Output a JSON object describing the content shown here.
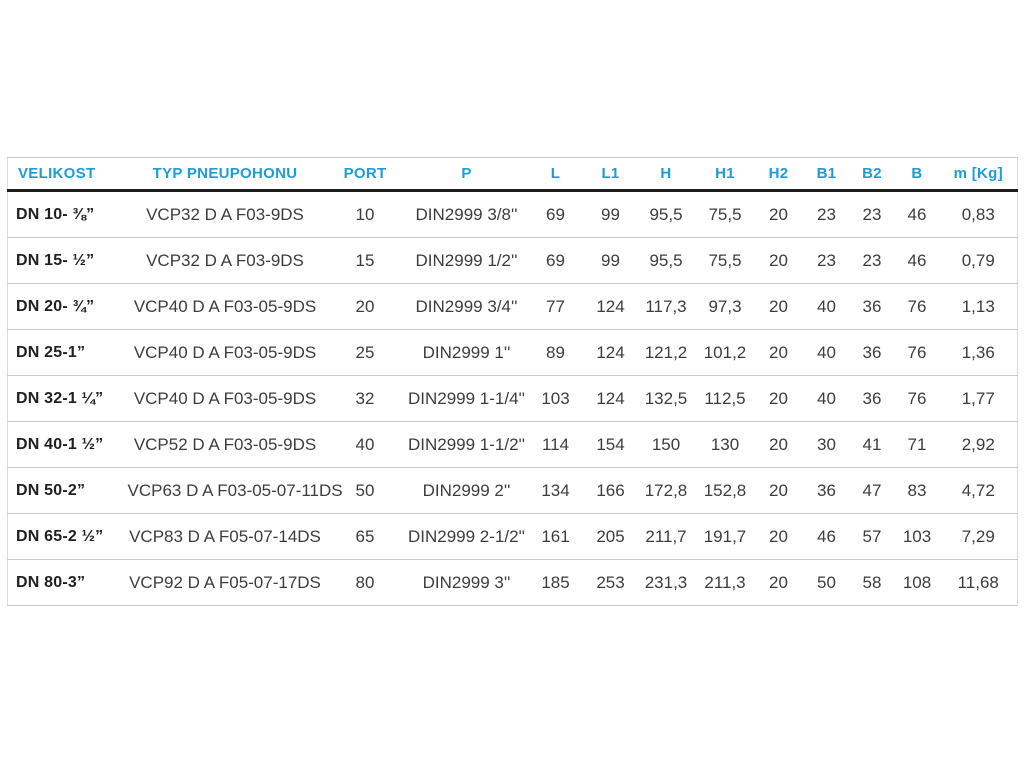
{
  "page": {
    "background_color": "#ffffff"
  },
  "table": {
    "accent_color": "#1e9cd7",
    "body_text_color": "#3d3d3d",
    "first_column_text_color": "#1f1f1f",
    "header_rule_color": "#1b1b1b",
    "row_rule_color": "#c9c9c9",
    "columns": [
      "VELIKOST",
      "TYP PNEUPOHONU",
      "PORT",
      "P",
      "L",
      "L1",
      "H",
      "H1",
      "H2",
      "B1",
      "B2",
      "B",
      "m [Kg]"
    ],
    "rows": [
      [
        "DN 10- ⅜”",
        "VCP32 D A F03-9DS",
        "10",
        "DIN2999 3/8''",
        "69",
        "99",
        "95,5",
        "75,5",
        "20",
        "23",
        "23",
        "46",
        "0,83"
      ],
      [
        "DN 15- ½”",
        "VCP32 D A F03-9DS",
        "15",
        "DIN2999 1/2''",
        "69",
        "99",
        "95,5",
        "75,5",
        "20",
        "23",
        "23",
        "46",
        "0,79"
      ],
      [
        "DN 20- ¾”",
        "VCP40 D A F03-05-9DS",
        "20",
        "DIN2999 3/4''",
        "77",
        "124",
        "117,3",
        "97,3",
        "20",
        "40",
        "36",
        "76",
        "1,13"
      ],
      [
        "DN 25-1”",
        "VCP40 D A F03-05-9DS",
        "25",
        "DIN2999 1''",
        "89",
        "124",
        "121,2",
        "101,2",
        "20",
        "40",
        "36",
        "76",
        "1,36"
      ],
      [
        "DN 32-1 ¼”",
        "VCP40 D A F03-05-9DS",
        "32",
        "DIN2999 1-1/4''",
        "103",
        "124",
        "132,5",
        "112,5",
        "20",
        "40",
        "36",
        "76",
        "1,77"
      ],
      [
        "DN 40-1 ½”",
        "VCP52 D A F03-05-9DS",
        "40",
        "DIN2999 1-1/2''",
        "114",
        "154",
        "150",
        "130",
        "20",
        "30",
        "41",
        "71",
        "2,92"
      ],
      [
        "DN 50-2”",
        "VCP63 D A F03-05-07-11DS",
        "50",
        "DIN2999 2''",
        "134",
        "166",
        "172,8",
        "152,8",
        "20",
        "36",
        "47",
        "83",
        "4,72"
      ],
      [
        "DN 65-2 ½”",
        "VCP83 D A F05-07-14DS",
        "65",
        "DIN2999 2-1/2''",
        "161",
        "205",
        "211,7",
        "191,7",
        "20",
        "46",
        "57",
        "103",
        "7,29"
      ],
      [
        "DN 80-3”",
        "VCP92 D A F05-07-17DS",
        "80",
        "DIN2999 3''",
        "185",
        "253",
        "231,3",
        "211,3",
        "20",
        "50",
        "58",
        "108",
        "11,68"
      ]
    ]
  }
}
